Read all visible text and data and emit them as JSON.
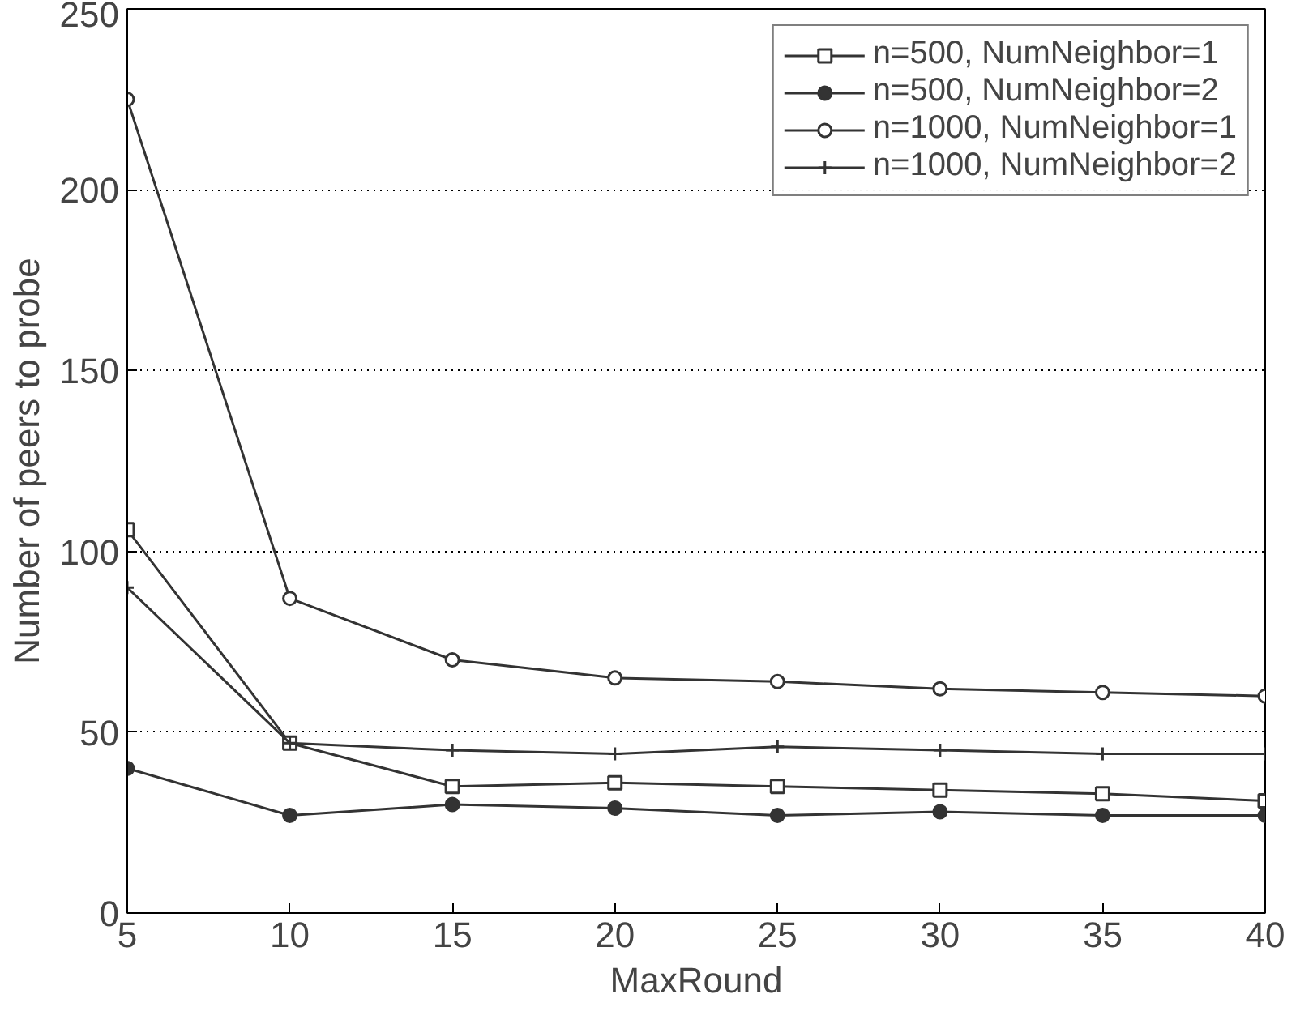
{
  "chart_data": {
    "type": "line",
    "xlabel": "MaxRound",
    "ylabel": "Number of peers to probe",
    "x": [
      5,
      10,
      15,
      20,
      25,
      30,
      35,
      40
    ],
    "series": [
      {
        "name": "n=500, NumNeighbor=1",
        "color": "#333333",
        "marker": "square",
        "values": [
          106,
          47,
          35,
          36,
          35,
          34,
          33,
          31
        ]
      },
      {
        "name": "n=500, NumNeighbor=2",
        "color": "#333333",
        "marker": "circle_fill",
        "values": [
          40,
          27,
          30,
          29,
          27,
          28,
          27,
          27
        ]
      },
      {
        "name": "n=1000, NumNeighbor=1",
        "color": "#333333",
        "marker": "circle",
        "values": [
          225,
          87,
          70,
          65,
          64,
          62,
          61,
          60
        ]
      },
      {
        "name": "n=1000, NumNeighbor=2",
        "color": "#333333",
        "marker": "cross",
        "values": [
          90,
          47,
          45,
          44,
          46,
          45,
          44,
          44
        ]
      }
    ],
    "xlim": [
      5,
      40
    ],
    "ylim": [
      0,
      250
    ],
    "xticks": [
      5,
      10,
      15,
      20,
      25,
      30,
      35,
      40
    ],
    "yticks": [
      0,
      50,
      100,
      150,
      200,
      250
    ],
    "grid": "y",
    "legend": "top right",
    "line_style": "solid"
  }
}
